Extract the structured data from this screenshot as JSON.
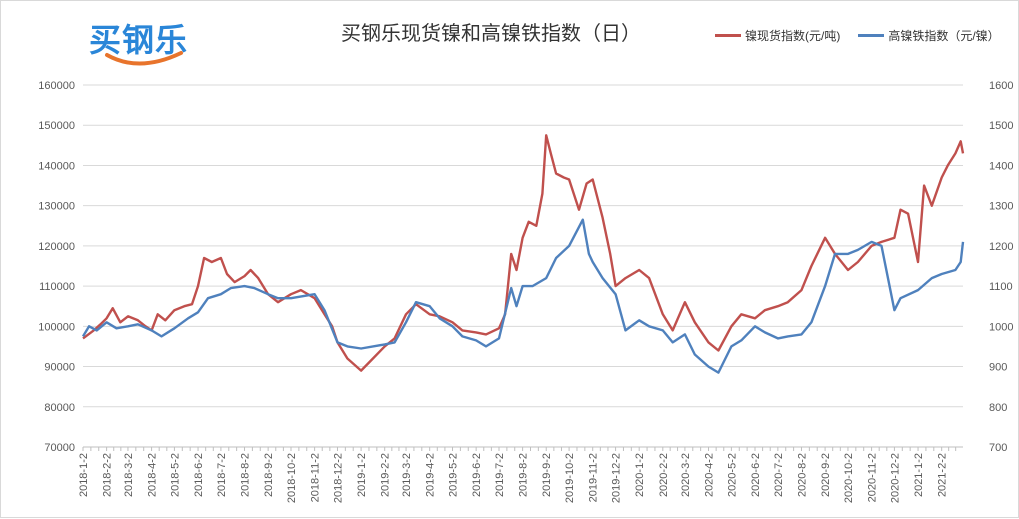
{
  "brand": {
    "logo_text": "买钢乐"
  },
  "chart_data": {
    "type": "line",
    "title": "买钢乐现货镍和高镍铁指数（日）",
    "grid": "horizontal",
    "legend_placement": "top-right",
    "x_ticks": [
      "2018-1-2",
      "2018-2-2",
      "2018-3-2",
      "2018-4-2",
      "2018-5-2",
      "2018-6-2",
      "2018-7-2",
      "2018-8-2",
      "2018-9-2",
      "2018-10-2",
      "2018-11-2",
      "2018-12-2",
      "2019-1-2",
      "2019-2-2",
      "2019-3-2",
      "2019-4-2",
      "2019-5-2",
      "2019-6-2",
      "2019-7-2",
      "2019-8-2",
      "2019-9-2",
      "2019-10-2",
      "2019-11-2",
      "2019-12-2",
      "2020-1-2",
      "2020-2-2",
      "2020-3-2",
      "2020-4-2",
      "2020-5-2",
      "2020-6-2",
      "2020-7-2",
      "2020-8-2",
      "2020-9-2",
      "2020-10-2",
      "2020-11-2",
      "2020-12-2",
      "2021-1-2",
      "2021-2-2"
    ],
    "y_left": {
      "ticks": [
        70000,
        80000,
        90000,
        100000,
        110000,
        120000,
        130000,
        140000,
        150000,
        160000
      ],
      "ylim": [
        70000,
        160000
      ]
    },
    "y_right": {
      "ticks": [
        700,
        800,
        900,
        1000,
        1100,
        1200,
        1300,
        1400,
        1500,
        1600
      ],
      "ylim": [
        700,
        1600
      ]
    },
    "series": [
      {
        "name": "镍现货指数(元/吨)",
        "axis": "left",
        "color": "#c0504d",
        "points": [
          [
            "2018-1-2",
            97000
          ],
          [
            "2018-1-16",
            99000
          ],
          [
            "2018-1-25",
            100500
          ],
          [
            "2018-2-2",
            102000
          ],
          [
            "2018-2-10",
            104500
          ],
          [
            "2018-2-20",
            101000
          ],
          [
            "2018-3-2",
            102500
          ],
          [
            "2018-3-15",
            101500
          ],
          [
            "2018-3-25",
            100000
          ],
          [
            "2018-4-2",
            99000
          ],
          [
            "2018-4-10",
            103000
          ],
          [
            "2018-4-20",
            101500
          ],
          [
            "2018-5-2",
            104000
          ],
          [
            "2018-5-15",
            105000
          ],
          [
            "2018-5-25",
            105500
          ],
          [
            "2018-6-2",
            110000
          ],
          [
            "2018-6-10",
            117000
          ],
          [
            "2018-6-20",
            116000
          ],
          [
            "2018-7-2",
            117000
          ],
          [
            "2018-7-10",
            113000
          ],
          [
            "2018-7-20",
            111000
          ],
          [
            "2018-8-2",
            112500
          ],
          [
            "2018-8-10",
            114000
          ],
          [
            "2018-8-20",
            112000
          ],
          [
            "2018-9-2",
            108000
          ],
          [
            "2018-9-15",
            106000
          ],
          [
            "2018-10-2",
            108000
          ],
          [
            "2018-10-15",
            109000
          ],
          [
            "2018-11-2",
            107000
          ],
          [
            "2018-11-15",
            103000
          ],
          [
            "2018-11-25",
            100000
          ],
          [
            "2018-12-2",
            96000
          ],
          [
            "2018-12-15",
            92000
          ],
          [
            "2019-1-2",
            89000
          ],
          [
            "2019-1-15",
            91500
          ],
          [
            "2019-2-2",
            95000
          ],
          [
            "2019-2-15",
            97000
          ],
          [
            "2019-3-2",
            103000
          ],
          [
            "2019-3-15",
            105500
          ],
          [
            "2019-4-2",
            103000
          ],
          [
            "2019-4-15",
            102500
          ],
          [
            "2019-5-2",
            101000
          ],
          [
            "2019-5-15",
            99000
          ],
          [
            "2019-6-2",
            98500
          ],
          [
            "2019-6-15",
            98000
          ],
          [
            "2019-7-2",
            99500
          ],
          [
            "2019-7-10",
            103000
          ],
          [
            "2019-7-18",
            118000
          ],
          [
            "2019-7-25",
            114000
          ],
          [
            "2019-8-2",
            122000
          ],
          [
            "2019-8-10",
            126000
          ],
          [
            "2019-8-20",
            125000
          ],
          [
            "2019-8-28",
            133000
          ],
          [
            "2019-9-2",
            147500
          ],
          [
            "2019-9-8",
            143000
          ],
          [
            "2019-9-15",
            138000
          ],
          [
            "2019-9-25",
            137000
          ],
          [
            "2019-10-2",
            136500
          ],
          [
            "2019-10-15",
            129000
          ],
          [
            "2019-10-25",
            135500
          ],
          [
            "2019-11-2",
            136500
          ],
          [
            "2019-11-15",
            127000
          ],
          [
            "2019-11-25",
            118000
          ],
          [
            "2019-12-2",
            110000
          ],
          [
            "2019-12-15",
            112000
          ],
          [
            "2020-1-2",
            114000
          ],
          [
            "2020-1-15",
            112000
          ],
          [
            "2020-2-2",
            103000
          ],
          [
            "2020-2-15",
            99000
          ],
          [
            "2020-3-2",
            106000
          ],
          [
            "2020-3-15",
            101000
          ],
          [
            "2020-4-2",
            96000
          ],
          [
            "2020-4-15",
            94000
          ],
          [
            "2020-5-2",
            100000
          ],
          [
            "2020-5-15",
            103000
          ],
          [
            "2020-6-2",
            102000
          ],
          [
            "2020-6-15",
            104000
          ],
          [
            "2020-7-2",
            105000
          ],
          [
            "2020-7-15",
            106000
          ],
          [
            "2020-8-2",
            109000
          ],
          [
            "2020-8-15",
            115000
          ],
          [
            "2020-9-2",
            122000
          ],
          [
            "2020-9-15",
            118000
          ],
          [
            "2020-10-2",
            114000
          ],
          [
            "2020-10-15",
            116000
          ],
          [
            "2020-11-2",
            120000
          ],
          [
            "2020-11-15",
            121000
          ],
          [
            "2020-12-2",
            122000
          ],
          [
            "2020-12-10",
            129000
          ],
          [
            "2020-12-20",
            128000
          ],
          [
            "2021-1-2",
            116000
          ],
          [
            "2021-1-10",
            135000
          ],
          [
            "2021-1-20",
            130000
          ],
          [
            "2021-2-2",
            137000
          ],
          [
            "2021-2-10",
            140000
          ],
          [
            "2021-2-20",
            143000
          ],
          [
            "2021-2-27",
            146000
          ],
          [
            "2021-3-2",
            143000
          ]
        ]
      },
      {
        "name": "高镍铁指数（元/镍）",
        "axis": "right",
        "color": "#4f81bd",
        "points": [
          [
            "2018-1-2",
            975
          ],
          [
            "2018-1-10",
            1000
          ],
          [
            "2018-1-20",
            990
          ],
          [
            "2018-2-2",
            1010
          ],
          [
            "2018-2-15",
            995
          ],
          [
            "2018-3-2",
            1000
          ],
          [
            "2018-3-15",
            1005
          ],
          [
            "2018-4-2",
            990
          ],
          [
            "2018-4-15",
            975
          ],
          [
            "2018-5-2",
            995
          ],
          [
            "2018-5-20",
            1020
          ],
          [
            "2018-6-2",
            1035
          ],
          [
            "2018-6-15",
            1070
          ],
          [
            "2018-7-2",
            1080
          ],
          [
            "2018-7-15",
            1095
          ],
          [
            "2018-8-2",
            1100
          ],
          [
            "2018-8-15",
            1095
          ],
          [
            "2018-9-2",
            1080
          ],
          [
            "2018-9-15",
            1070
          ],
          [
            "2018-10-2",
            1070
          ],
          [
            "2018-11-2",
            1080
          ],
          [
            "2018-11-15",
            1040
          ],
          [
            "2018-12-2",
            960
          ],
          [
            "2018-12-15",
            950
          ],
          [
            "2019-1-2",
            945
          ],
          [
            "2019-2-2",
            955
          ],
          [
            "2019-2-15",
            960
          ],
          [
            "2019-3-2",
            1010
          ],
          [
            "2019-3-15",
            1060
          ],
          [
            "2019-4-2",
            1050
          ],
          [
            "2019-4-15",
            1020
          ],
          [
            "2019-5-2",
            1000
          ],
          [
            "2019-5-15",
            975
          ],
          [
            "2019-6-2",
            965
          ],
          [
            "2019-6-15",
            950
          ],
          [
            "2019-7-2",
            970
          ],
          [
            "2019-7-18",
            1095
          ],
          [
            "2019-7-25",
            1050
          ],
          [
            "2019-8-2",
            1100
          ],
          [
            "2019-8-15",
            1100
          ],
          [
            "2019-9-2",
            1120
          ],
          [
            "2019-9-15",
            1170
          ],
          [
            "2019-10-2",
            1200
          ],
          [
            "2019-10-20",
            1265
          ],
          [
            "2019-10-28",
            1180
          ],
          [
            "2019-11-2",
            1160
          ],
          [
            "2019-11-15",
            1120
          ],
          [
            "2019-12-2",
            1080
          ],
          [
            "2019-12-15",
            990
          ],
          [
            "2020-1-2",
            1015
          ],
          [
            "2020-1-15",
            1000
          ],
          [
            "2020-2-2",
            990
          ],
          [
            "2020-2-15",
            960
          ],
          [
            "2020-3-2",
            980
          ],
          [
            "2020-3-15",
            930
          ],
          [
            "2020-4-2",
            900
          ],
          [
            "2020-4-15",
            885
          ],
          [
            "2020-5-2",
            950
          ],
          [
            "2020-5-15",
            965
          ],
          [
            "2020-6-2",
            1000
          ],
          [
            "2020-6-15",
            985
          ],
          [
            "2020-7-2",
            970
          ],
          [
            "2020-7-15",
            975
          ],
          [
            "2020-8-2",
            980
          ],
          [
            "2020-8-15",
            1010
          ],
          [
            "2020-9-2",
            1100
          ],
          [
            "2020-9-15",
            1180
          ],
          [
            "2020-10-2",
            1180
          ],
          [
            "2020-10-15",
            1190
          ],
          [
            "2020-11-2",
            1210
          ],
          [
            "2020-11-15",
            1200
          ],
          [
            "2020-12-2",
            1040
          ],
          [
            "2020-12-10",
            1070
          ],
          [
            "2021-1-2",
            1090
          ],
          [
            "2021-1-20",
            1120
          ],
          [
            "2021-2-2",
            1130
          ],
          [
            "2021-2-20",
            1140
          ],
          [
            "2021-2-27",
            1160
          ],
          [
            "2021-3-2",
            1210
          ]
        ]
      }
    ]
  }
}
